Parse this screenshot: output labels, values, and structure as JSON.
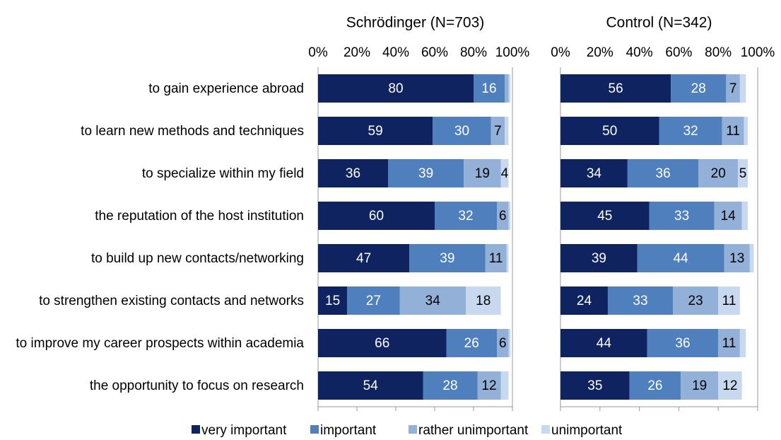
{
  "chart_data": {
    "type": "bar",
    "orientation": "horizontal",
    "stacked": true,
    "categories": [
      "to gain experience abroad",
      "to learn new methods and techniques",
      "to specialize within my field",
      "the reputation of the host institution",
      "to build up new contacts/networking",
      "to strengthen existing contacts and networks",
      "to improve my career prospects within academia",
      "the opportunity to focus on research"
    ],
    "series": [
      {
        "name": "very important",
        "color": "#0f2360"
      },
      {
        "name": "important",
        "color": "#4f7fbd"
      },
      {
        "name": "rather unimportant",
        "color": "#93b1d8"
      },
      {
        "name": "unimportant",
        "color": "#c7d8ef"
      }
    ],
    "panels": [
      {
        "title": "Schrödinger (N=703)",
        "xlim": [
          0,
          100
        ],
        "xticks": [
          {
            "value": 0,
            "label": "0%"
          },
          {
            "value": 20,
            "label": "20%"
          },
          {
            "value": 40,
            "label": "40%"
          },
          {
            "value": 60,
            "label": "60%"
          },
          {
            "value": 80,
            "label": "80%"
          },
          {
            "value": 100,
            "label": "100%"
          }
        ],
        "series_values": [
          [
            80,
            59,
            36,
            60,
            47,
            15,
            66,
            54
          ],
          [
            16,
            30,
            39,
            32,
            39,
            27,
            26,
            28
          ],
          [
            2,
            7,
            19,
            6,
            11,
            34,
            6,
            12
          ],
          [
            1,
            2,
            4,
            1,
            1,
            18,
            1,
            4
          ]
        ],
        "value_labels": [
          [
            "80",
            "59",
            "36",
            "60",
            "47",
            "15",
            "66",
            "54"
          ],
          [
            "16",
            "30",
            "39",
            "32",
            "39",
            "27",
            "26",
            "28"
          ],
          [
            null,
            "7",
            "19",
            "6",
            "11",
            "34",
            "6",
            "12"
          ],
          [
            null,
            null,
            "4",
            null,
            null,
            "18",
            null,
            null
          ]
        ]
      },
      {
        "title": "Control (N=342)",
        "xlim": [
          0,
          100
        ],
        "xticks": [
          {
            "value": 0,
            "label": "0%"
          },
          {
            "value": 20,
            "label": "20%"
          },
          {
            "value": 40,
            "label": "40%"
          },
          {
            "value": 60,
            "label": "60%"
          },
          {
            "value": 80,
            "label": "80%"
          },
          {
            "value": 100,
            "label": "100%"
          }
        ],
        "series_values": [
          [
            56,
            50,
            34,
            45,
            39,
            24,
            44,
            35
          ],
          [
            28,
            32,
            36,
            33,
            44,
            33,
            36,
            26
          ],
          [
            7,
            11,
            20,
            14,
            13,
            23,
            11,
            19
          ],
          [
            3,
            2,
            5,
            3,
            2,
            11,
            3,
            12
          ]
        ],
        "value_labels": [
          [
            "56",
            "50",
            "34",
            "45",
            "39",
            "24",
            "44",
            "35"
          ],
          [
            "28",
            "32",
            "36",
            "33",
            "44",
            "33",
            "36",
            "26"
          ],
          [
            "7",
            "11",
            "20",
            "14",
            "13",
            "23",
            "11",
            "19"
          ],
          [
            null,
            null,
            "5",
            null,
            null,
            "11",
            null,
            "12"
          ]
        ]
      }
    ]
  }
}
